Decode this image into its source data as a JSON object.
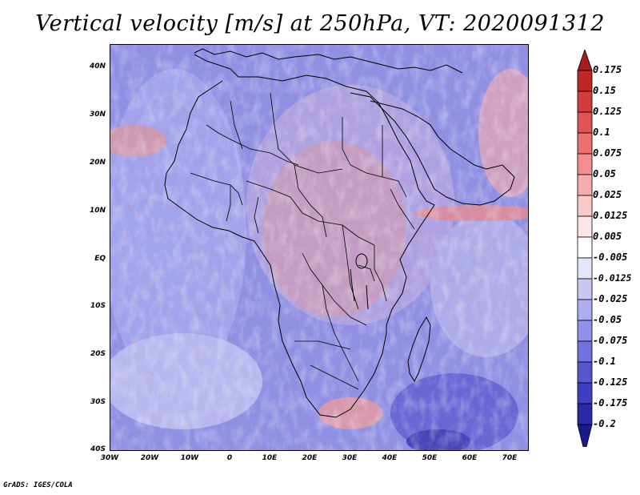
{
  "title": "Vertical velocity [m/s] at 250hPa, VT: 2020091312",
  "credit": "GrADS: IGES/COLA",
  "map": {
    "lat_ticks": [
      "40N",
      "30N",
      "20N",
      "10N",
      "EQ",
      "10S",
      "20S",
      "30S",
      "40S"
    ],
    "lon_ticks": [
      "30W",
      "20W",
      "10W",
      "0",
      "10E",
      "20E",
      "30E",
      "40E",
      "50E",
      "60E",
      "70E"
    ]
  },
  "colorbar": {
    "labels": [
      "0.175",
      "0.15",
      "0.125",
      "0.1",
      "0.075",
      "0.05",
      "0.025",
      "0.0125",
      "0.005",
      "-0.005",
      "-0.0125",
      "-0.025",
      "-0.05",
      "-0.075",
      "-0.1",
      "-0.125",
      "-0.175",
      "-0.2"
    ],
    "colors": [
      "#a81c1c",
      "#c02626",
      "#d43c3c",
      "#e05454",
      "#ec7070",
      "#f28e8e",
      "#f7acac",
      "#facaca",
      "#fde6e6",
      "#ffffff",
      "#e6e6fb",
      "#c8c8f4",
      "#acacee",
      "#9090e6",
      "#7272dc",
      "#5656cf",
      "#3e3ec2",
      "#2a2aa6",
      "#1a1a8c"
    ]
  }
}
